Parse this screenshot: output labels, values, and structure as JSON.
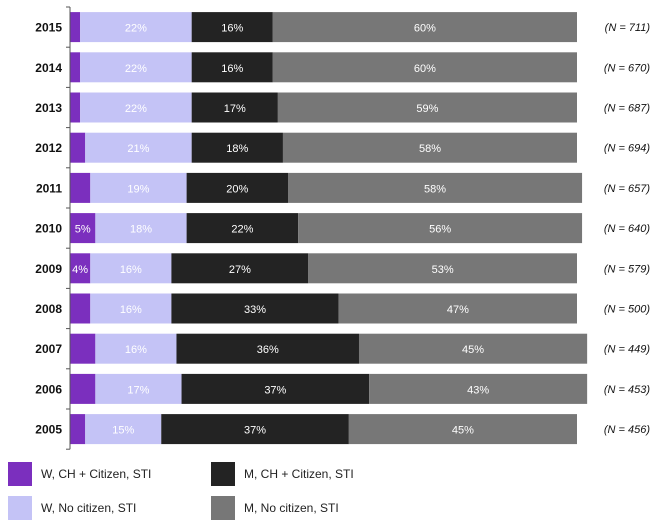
{
  "chart_data": {
    "type": "bar",
    "orientation": "horizontal",
    "stacked": true,
    "categories": [
      "2015",
      "2014",
      "2013",
      "2012",
      "2011",
      "2010",
      "2009",
      "2008",
      "2007",
      "2006",
      "2005"
    ],
    "n_labels": [
      "(N = 711)",
      "(N = 670)",
      "(N = 687)",
      "(N = 694)",
      "(N = 657)",
      "(N = 640)",
      "(N = 579)",
      "(N = 500)",
      "(N = 449)",
      "(N = 453)",
      "(N = 456)"
    ],
    "xlim": [
      0,
      100
    ],
    "series": [
      {
        "name": "W, CH + Citizen, STI",
        "color": "#7b2fbe",
        "label_color": "#ffffff",
        "values": [
          2,
          2,
          2,
          3,
          4,
          5,
          4,
          4,
          5,
          5,
          3
        ],
        "labels": [
          "",
          "",
          "",
          "",
          "",
          "5%",
          "4%",
          "",
          "",
          "",
          ""
        ]
      },
      {
        "name": "W, No citizen, STI",
        "color": "#c4c3f6",
        "label_color": "#ffffff",
        "values": [
          22,
          22,
          22,
          21,
          19,
          18,
          16,
          16,
          16,
          17,
          15
        ],
        "labels": [
          "22%",
          "22%",
          "22%",
          "21%",
          "19%",
          "18%",
          "16%",
          "16%",
          "16%",
          "17%",
          "15%"
        ]
      },
      {
        "name": "M, CH + Citizen, STI",
        "color": "#232323",
        "label_color": "#ffffff",
        "values": [
          16,
          16,
          17,
          18,
          20,
          22,
          27,
          33,
          36,
          37,
          37
        ],
        "labels": [
          "16%",
          "16%",
          "17%",
          "18%",
          "20%",
          "22%",
          "27%",
          "33%",
          "36%",
          "37%",
          "37%"
        ]
      },
      {
        "name": "M, No citizen, STI",
        "color": "#777777",
        "label_color": "#ffffff",
        "values": [
          60,
          60,
          59,
          58,
          58,
          56,
          53,
          47,
          45,
          43,
          45
        ],
        "labels": [
          "60%",
          "60%",
          "59%",
          "58%",
          "58%",
          "56%",
          "53%",
          "47%",
          "45%",
          "43%",
          "45%"
        ]
      }
    ],
    "legend_position": "bottom-left"
  }
}
